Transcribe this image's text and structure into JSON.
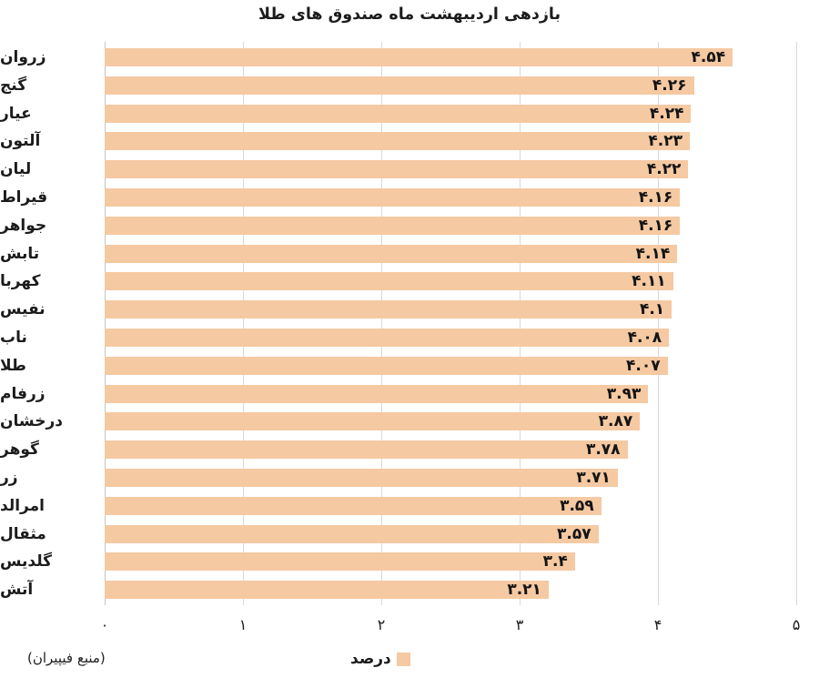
{
  "chart_data": {
    "type": "bar",
    "orientation": "horizontal",
    "title": "بازدهی اردیبهشت ماه صندوق های طلا",
    "categories": [
      "زروان",
      "گنج",
      "عیار",
      "آلتون",
      "لیان",
      "قیراط",
      "جواهر",
      "تابش",
      "کهربا",
      "نفیس",
      "ناب",
      "طلا",
      "زرفام",
      "درخشان",
      "گوهر",
      "زر",
      "امرالد",
      "مثقال",
      "گلدیس",
      "آتش"
    ],
    "values": [
      4.54,
      4.26,
      4.24,
      4.23,
      4.22,
      4.16,
      4.16,
      4.14,
      4.11,
      4.1,
      4.08,
      4.07,
      3.93,
      3.87,
      3.78,
      3.71,
      3.59,
      3.57,
      3.4,
      3.21
    ],
    "value_labels": [
      "۴.۵۴",
      "۴.۲۶",
      "۴.۲۴",
      "۴.۲۳",
      "۴.۲۲",
      "۴.۱۶",
      "۴.۱۶",
      "۴.۱۴",
      "۴.۱۱",
      "۴.۱",
      "۴.۰۸",
      "۴.۰۷",
      "۳.۹۳",
      "۳.۸۷",
      "۳.۷۸",
      "۳.۷۱",
      "۳.۵۹",
      "۳.۵۷",
      "۳.۴",
      "۳.۲۱"
    ],
    "xlim": [
      0,
      5
    ],
    "x_ticks": [
      0,
      1,
      2,
      3,
      4,
      5
    ],
    "x_tick_labels": [
      "۰",
      "۱",
      "۲",
      "۳",
      "۴",
      "۵"
    ],
    "grid": true,
    "legend_position": "bottom-center",
    "legend": {
      "label": "درصد"
    },
    "bar_color": "#F5C9A2",
    "grid_color": "#D9D9D9",
    "axis_line_color": "#C4C4C4",
    "text_color": "#1c1c1c"
  },
  "source_note": "(منبع فیپیران)"
}
